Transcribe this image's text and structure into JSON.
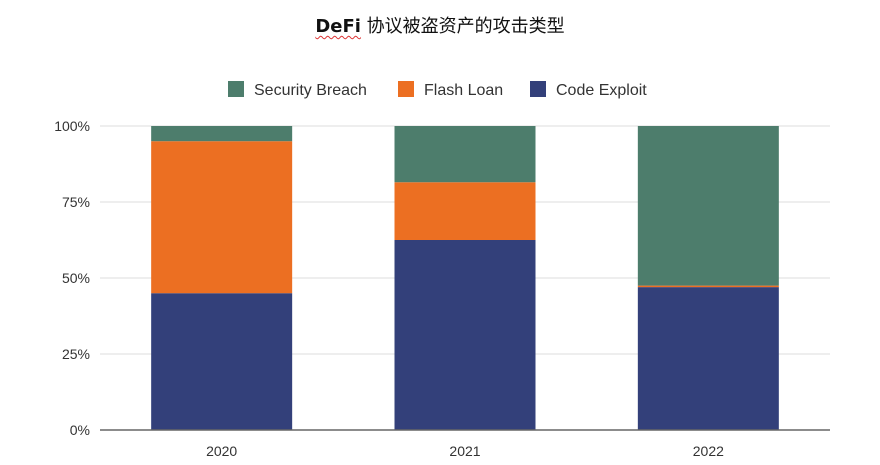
{
  "title": {
    "bold_part": "DeFi",
    "rest": " 协议被盗资产的攻击类型"
  },
  "colors": {
    "Security Breach": "#4d7d6c",
    "Flash Loan": "#ec6f22",
    "Code Exploit": "#33407a",
    "axis": "#666666",
    "grid": "#dddddd"
  },
  "chart_data": {
    "type": "bar",
    "stacked": true,
    "percent": true,
    "categories": [
      "2020",
      "2021",
      "2022"
    ],
    "series": [
      {
        "name": "Code Exploit",
        "values": [
          45,
          62.5,
          47
        ]
      },
      {
        "name": "Flash Loan",
        "values": [
          50,
          19,
          0.5
        ]
      },
      {
        "name": "Security Breach",
        "values": [
          5,
          18.5,
          52.5
        ]
      }
    ],
    "legend": [
      "Security Breach",
      "Flash Loan",
      "Code Exploit"
    ],
    "legend_position": "top",
    "y_ticks": [
      "0%",
      "25%",
      "50%",
      "75%",
      "100%"
    ],
    "ylim": [
      0,
      100
    ],
    "grid": true,
    "xlabel": "",
    "ylabel": ""
  }
}
